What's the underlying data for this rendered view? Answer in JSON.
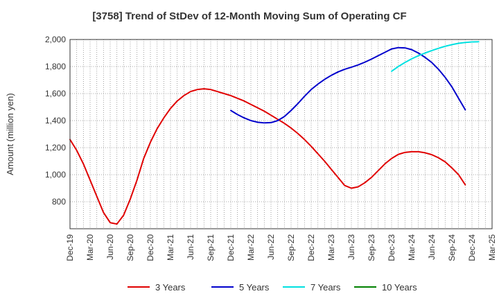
{
  "chart_data": {
    "type": "line",
    "title": "[3758]  Trend of StDev of 12-Month Moving Sum of Operating CF",
    "ylabel": "Amount (million yen)",
    "xlabel": "",
    "ylim": [
      600,
      2000
    ],
    "yticks": [
      800,
      1000,
      1200,
      1400,
      1600,
      1800,
      2000
    ],
    "ytick_labels": [
      "800",
      "1,000",
      "1,200",
      "1,400",
      "1,600",
      "1,800",
      "2,000"
    ],
    "x_categories": [
      "Dec-19",
      "Jan-20",
      "Feb-20",
      "Mar-20",
      "Apr-20",
      "May-20",
      "Jun-20",
      "Jul-20",
      "Aug-20",
      "Sep-20",
      "Oct-20",
      "Nov-20",
      "Dec-20",
      "Jan-21",
      "Feb-21",
      "Mar-21",
      "Apr-21",
      "May-21",
      "Jun-21",
      "Jul-21",
      "Aug-21",
      "Sep-21",
      "Oct-21",
      "Nov-21",
      "Dec-21",
      "Jan-22",
      "Feb-22",
      "Mar-22",
      "Apr-22",
      "May-22",
      "Jun-22",
      "Jul-22",
      "Aug-22",
      "Sep-22",
      "Oct-22",
      "Nov-22",
      "Dec-22",
      "Jan-23",
      "Feb-23",
      "Mar-23",
      "Apr-23",
      "May-23",
      "Jun-23",
      "Jul-23",
      "Aug-23",
      "Sep-23",
      "Oct-23",
      "Nov-23",
      "Dec-23",
      "Jan-24",
      "Feb-24",
      "Mar-24",
      "Apr-24",
      "May-24",
      "Jun-24",
      "Jul-24",
      "Aug-24",
      "Sep-24",
      "Oct-24",
      "Nov-24",
      "Dec-24",
      "Jan-25",
      "Feb-25",
      "Mar-25"
    ],
    "xtick_labels": [
      "Dec-19",
      "Mar-20",
      "Jun-20",
      "Sep-20",
      "Dec-20",
      "Mar-21",
      "Jun-21",
      "Sep-21",
      "Dec-21",
      "Mar-22",
      "Jun-22",
      "Sep-22",
      "Dec-22",
      "Mar-23",
      "Jun-23",
      "Sep-23",
      "Dec-23",
      "Mar-24",
      "Jun-24",
      "Sep-24",
      "Dec-24",
      "Mar-25"
    ],
    "grid": true,
    "legend_position": "bottom",
    "series": [
      {
        "name": "3 Years",
        "color": "#e00000",
        "start": "Dec-19",
        "values": [
          1260,
          1180,
          1080,
          960,
          840,
          720,
          645,
          635,
          700,
          820,
          960,
          1120,
          1240,
          1340,
          1420,
          1490,
          1545,
          1585,
          1615,
          1630,
          1635,
          1630,
          1615,
          1600,
          1585,
          1565,
          1545,
          1520,
          1495,
          1470,
          1440,
          1410,
          1380,
          1345,
          1305,
          1260,
          1210,
          1155,
          1100,
          1040,
          980,
          920,
          900,
          910,
          940,
          980,
          1030,
          1080,
          1120,
          1150,
          1165,
          1170,
          1170,
          1162,
          1148,
          1125,
          1095,
          1050,
          1000,
          925
        ]
      },
      {
        "name": "5 Years",
        "color": "#0000cc",
        "start": "Dec-21",
        "values": [
          1475,
          1445,
          1420,
          1400,
          1388,
          1383,
          1385,
          1400,
          1430,
          1475,
          1525,
          1580,
          1630,
          1670,
          1705,
          1735,
          1760,
          1780,
          1795,
          1812,
          1832,
          1855,
          1880,
          1905,
          1930,
          1940,
          1938,
          1925,
          1900,
          1868,
          1830,
          1780,
          1720,
          1650,
          1565,
          1480
        ]
      },
      {
        "name": "7 Years",
        "color": "#00e0e0",
        "start": "Dec-23",
        "values": [
          1765,
          1800,
          1830,
          1857,
          1880,
          1900,
          1918,
          1935,
          1950,
          1962,
          1972,
          1978,
          1982,
          1983
        ]
      },
      {
        "name": "10 Years",
        "color": "#008000",
        "start": "Dec-24",
        "values": []
      }
    ]
  }
}
